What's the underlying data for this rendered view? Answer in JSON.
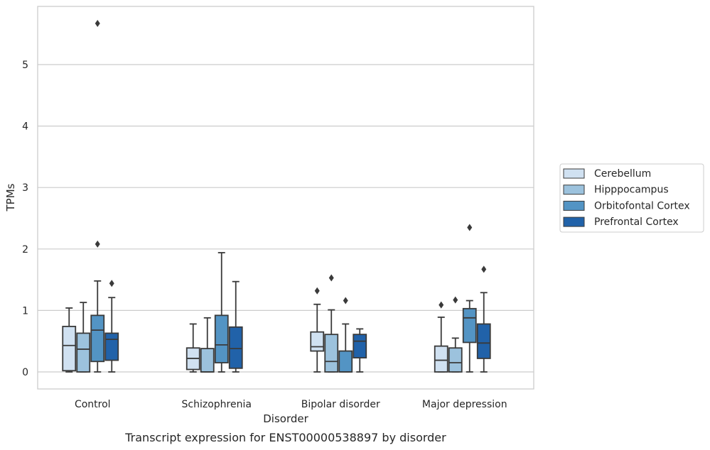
{
  "chart_data": {
    "type": "box",
    "title": "Transcript expression for ENST00000538897 by disorder",
    "xlabel": "Disorder",
    "ylabel": "TPMs",
    "ylim": [
      -0.28,
      5.95
    ],
    "yticks": [
      0,
      1,
      2,
      3,
      4,
      5
    ],
    "grid": "horizontal",
    "legend_position": "right",
    "categories": [
      "Control",
      "Schizophrenia",
      "Bipolar disorder",
      "Major depression"
    ],
    "series": [
      {
        "name": "Cerebellum",
        "color": "#d0e1f1",
        "boxes": [
          {
            "min": 0.0,
            "q1": 0.02,
            "median": 0.43,
            "q3": 0.74,
            "max": 1.04,
            "outliers": []
          },
          {
            "min": 0.0,
            "q1": 0.04,
            "median": 0.22,
            "q3": 0.39,
            "max": 0.78,
            "outliers": []
          },
          {
            "min": 0.0,
            "q1": 0.34,
            "median": 0.41,
            "q3": 0.65,
            "max": 1.1,
            "outliers": [
              1.32
            ]
          },
          {
            "min": 0.0,
            "q1": 0.0,
            "median": 0.19,
            "q3": 0.42,
            "max": 0.89,
            "outliers": [
              1.09
            ]
          }
        ]
      },
      {
        "name": "Hipppocampus",
        "color": "#9cc2dd",
        "boxes": [
          {
            "min": 0.0,
            "q1": 0.0,
            "median": 0.37,
            "q3": 0.63,
            "max": 1.13,
            "outliers": []
          },
          {
            "min": 0.0,
            "q1": 0.0,
            "median": 0.0,
            "q3": 0.38,
            "max": 0.88,
            "outliers": []
          },
          {
            "min": 0.0,
            "q1": 0.0,
            "median": 0.17,
            "q3": 0.61,
            "max": 1.01,
            "outliers": [
              1.53
            ]
          },
          {
            "min": 0.0,
            "q1": 0.0,
            "median": 0.15,
            "q3": 0.39,
            "max": 0.55,
            "outliers": [
              1.17
            ]
          }
        ]
      },
      {
        "name": "Orbitofontal Cortex",
        "color": "#5394c4",
        "boxes": [
          {
            "min": 0.0,
            "q1": 0.17,
            "median": 0.68,
            "q3": 0.92,
            "max": 1.48,
            "outliers": [
              2.08,
              5.67
            ]
          },
          {
            "min": 0.0,
            "q1": 0.15,
            "median": 0.44,
            "q3": 0.92,
            "max": 1.94,
            "outliers": []
          },
          {
            "min": 0.0,
            "q1": 0.0,
            "median": 0.0,
            "q3": 0.34,
            "max": 0.78,
            "outliers": [
              1.16
            ]
          },
          {
            "min": 0.0,
            "q1": 0.48,
            "median": 0.88,
            "q3": 1.03,
            "max": 1.16,
            "outliers": [
              2.35
            ]
          }
        ]
      },
      {
        "name": "Prefrontal Cortex",
        "color": "#2162a9",
        "boxes": [
          {
            "min": 0.0,
            "q1": 0.19,
            "median": 0.53,
            "q3": 0.63,
            "max": 1.21,
            "outliers": [
              1.44
            ]
          },
          {
            "min": 0.0,
            "q1": 0.06,
            "median": 0.38,
            "q3": 0.73,
            "max": 1.47,
            "outliers": []
          },
          {
            "min": 0.0,
            "q1": 0.23,
            "median": 0.5,
            "q3": 0.61,
            "max": 0.7,
            "outliers": []
          },
          {
            "min": 0.0,
            "q1": 0.22,
            "median": 0.47,
            "q3": 0.78,
            "max": 1.29,
            "outliers": [
              1.67
            ]
          }
        ]
      }
    ]
  }
}
